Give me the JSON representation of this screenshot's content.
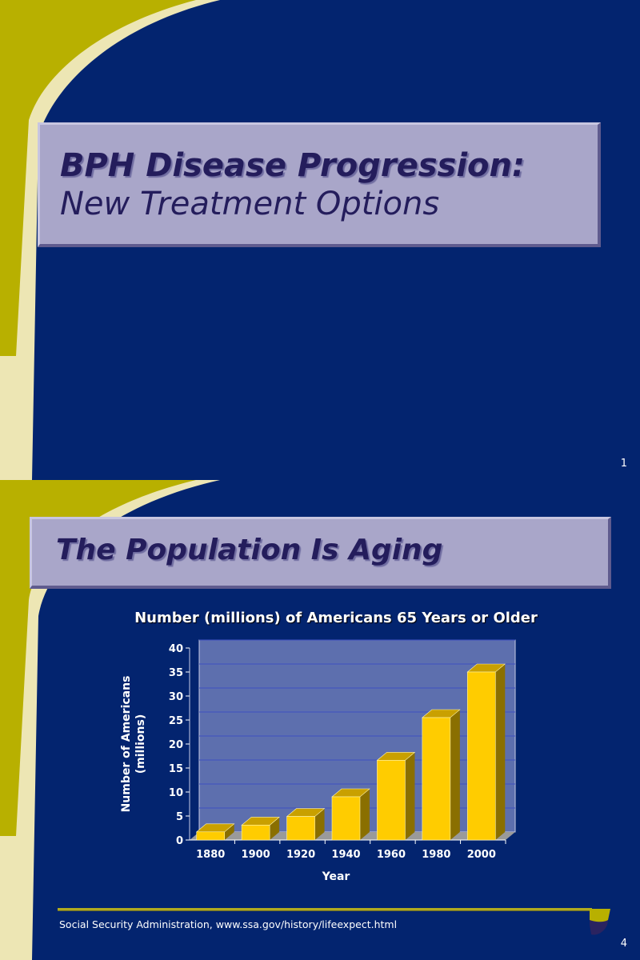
{
  "slides": [
    {
      "title_line1": "BPH Disease Progression:",
      "title_line2": "New Treatment Options",
      "page_number": "1"
    },
    {
      "title": "The Population Is Aging",
      "footnote": "Social Security Administration, www.ssa.gov/history/lifeexpect.html",
      "page_number": "4"
    }
  ],
  "colors": {
    "background": "#03246f",
    "accent_olive": "#b8b000",
    "accent_cream": "#ede6b4",
    "title_box": "#a9a6c9",
    "bar": "#ffcc00"
  },
  "chart_data": {
    "type": "bar",
    "title": "Number (millions) of Americans 65 Years or Older",
    "xlabel": "Year",
    "ylabel": "Number of Americans (millions)",
    "ylabel_lines": [
      "Number of Americans",
      "(millions)"
    ],
    "categories": [
      "1880",
      "1900",
      "1920",
      "1940",
      "1960",
      "1980",
      "2000"
    ],
    "values": [
      1.7,
      3.1,
      4.9,
      9.0,
      16.6,
      25.5,
      35.0
    ],
    "ylim": [
      0,
      40
    ],
    "yticks": [
      "0",
      "5",
      "10",
      "15",
      "20",
      "25",
      "30",
      "35",
      "40"
    ],
    "grid": true,
    "style": "3d bars over photo background of elderly men"
  }
}
